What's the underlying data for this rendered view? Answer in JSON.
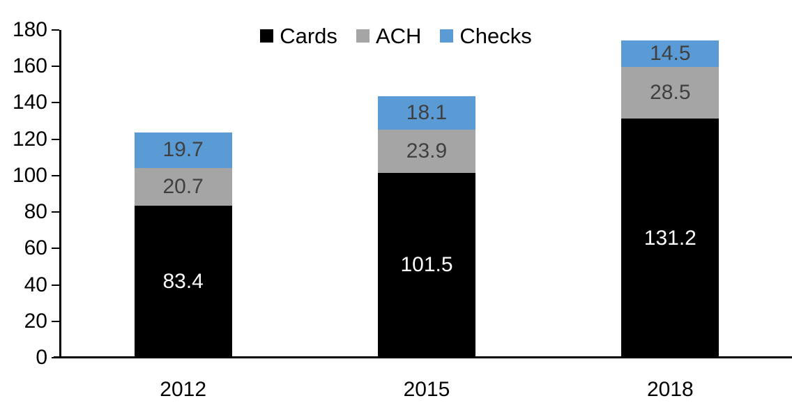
{
  "chart": {
    "background_color": "#ffffff",
    "axis_color": "#000000",
    "title": ""
  },
  "chart_data": {
    "type": "bar",
    "stacked": true,
    "title": "",
    "xlabel": "",
    "ylabel": "",
    "categories": [
      "2012",
      "2015",
      "2018"
    ],
    "series": [
      {
        "name": "Cards",
        "color": "#000000",
        "label_color": "#ffffff",
        "values": [
          83.4,
          101.5,
          131.2
        ]
      },
      {
        "name": "ACH",
        "color": "#A5A5A5",
        "label_color": "#404040",
        "values": [
          20.7,
          23.9,
          28.5
        ]
      },
      {
        "name": "Checks",
        "color": "#5B9BD5",
        "label_color": "#404040",
        "values": [
          19.7,
          18.1,
          14.5
        ]
      }
    ],
    "totals": [
      123.8,
      143.5,
      174.2
    ],
    "ylim": [
      0,
      180
    ],
    "ytick_step": 20,
    "ytick_labels": [
      "0",
      "20",
      "40",
      "60",
      "80",
      "100",
      "120",
      "140",
      "160",
      "180"
    ],
    "grid": false,
    "data_labels": true,
    "data_label_decimals": 1,
    "legend_position": "top-center"
  }
}
